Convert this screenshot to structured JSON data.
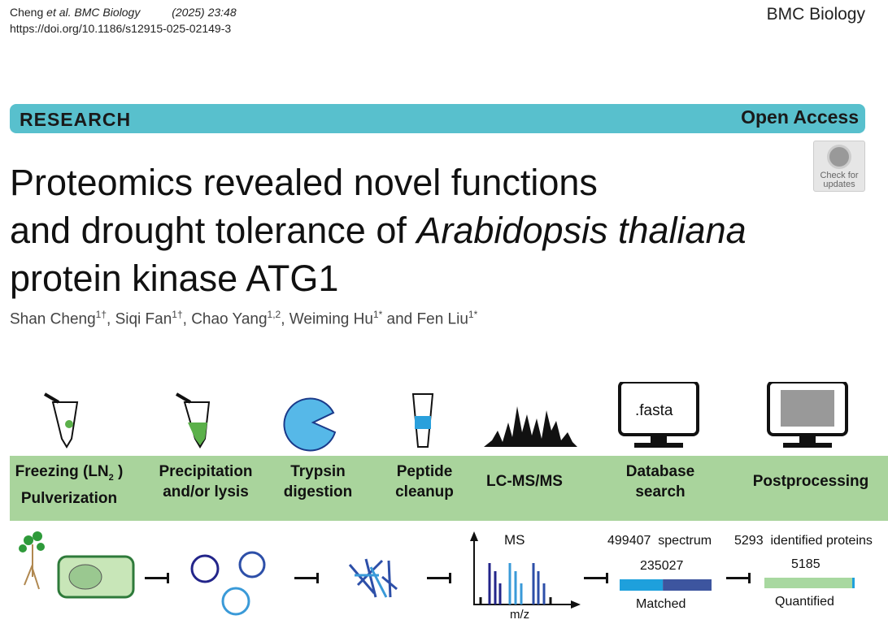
{
  "header": {
    "authors_short": "Cheng",
    "et_al": "et al. BMC Biology",
    "year_vol": "(2025) 23:48",
    "doi": "https://doi.org/10.1186/s12915-025-02149-3",
    "journal": "BMC Biology"
  },
  "banner": {
    "type": "RESEARCH",
    "access": "Open Access",
    "color": "#58c0cd"
  },
  "check_updates": {
    "line1": "Check for",
    "line2": "updates"
  },
  "title": {
    "line1": "Proteomics revealed novel functions",
    "line2_pre": "and drought tolerance of ",
    "line2_italic": "Arabidopsis thaliana",
    "line3": "protein kinase ATG1"
  },
  "authors": [
    {
      "name": "Shan Cheng",
      "sup": "1†"
    },
    {
      "name": "Siqi Fan",
      "sup": "1†"
    },
    {
      "name": "Chao Yang",
      "sup": "1,2"
    },
    {
      "name": "Weiming Hu",
      "sup": "1*"
    },
    {
      "name": "Fen Liu",
      "sup": "1*"
    }
  ],
  "authors_sep": ", ",
  "authors_and": " and ",
  "figure": {
    "steps": [
      {
        "l1": "Freezing (LN",
        "sub": "2",
        "l1b": " )",
        "l2": "Pulverization"
      },
      {
        "l1": "Precipitation",
        "l2": "and/or lysis"
      },
      {
        "l1": "Trypsin",
        "l2": "digestion"
      },
      {
        "l1": "Peptide",
        "l2": "cleanup"
      },
      {
        "l1": "LC-MS/MS",
        "l2": ""
      },
      {
        "l1": "Database",
        "l2": "search"
      },
      {
        "l1": "Postprocessing",
        "l2": ""
      }
    ],
    "fasta_label": ".fasta",
    "ms_label": "MS",
    "mz_label": "m/z",
    "spectrum_count": "499407",
    "spectrum_label": "spectrum",
    "matched_count": "235027",
    "matched_label": "Matched",
    "matched_fraction": 0.47,
    "identified_count": "5293",
    "identified_label": "identified proteins",
    "quantified_count": "5185",
    "quantified_label": "Quantified",
    "band_color": "#a9d49c"
  }
}
